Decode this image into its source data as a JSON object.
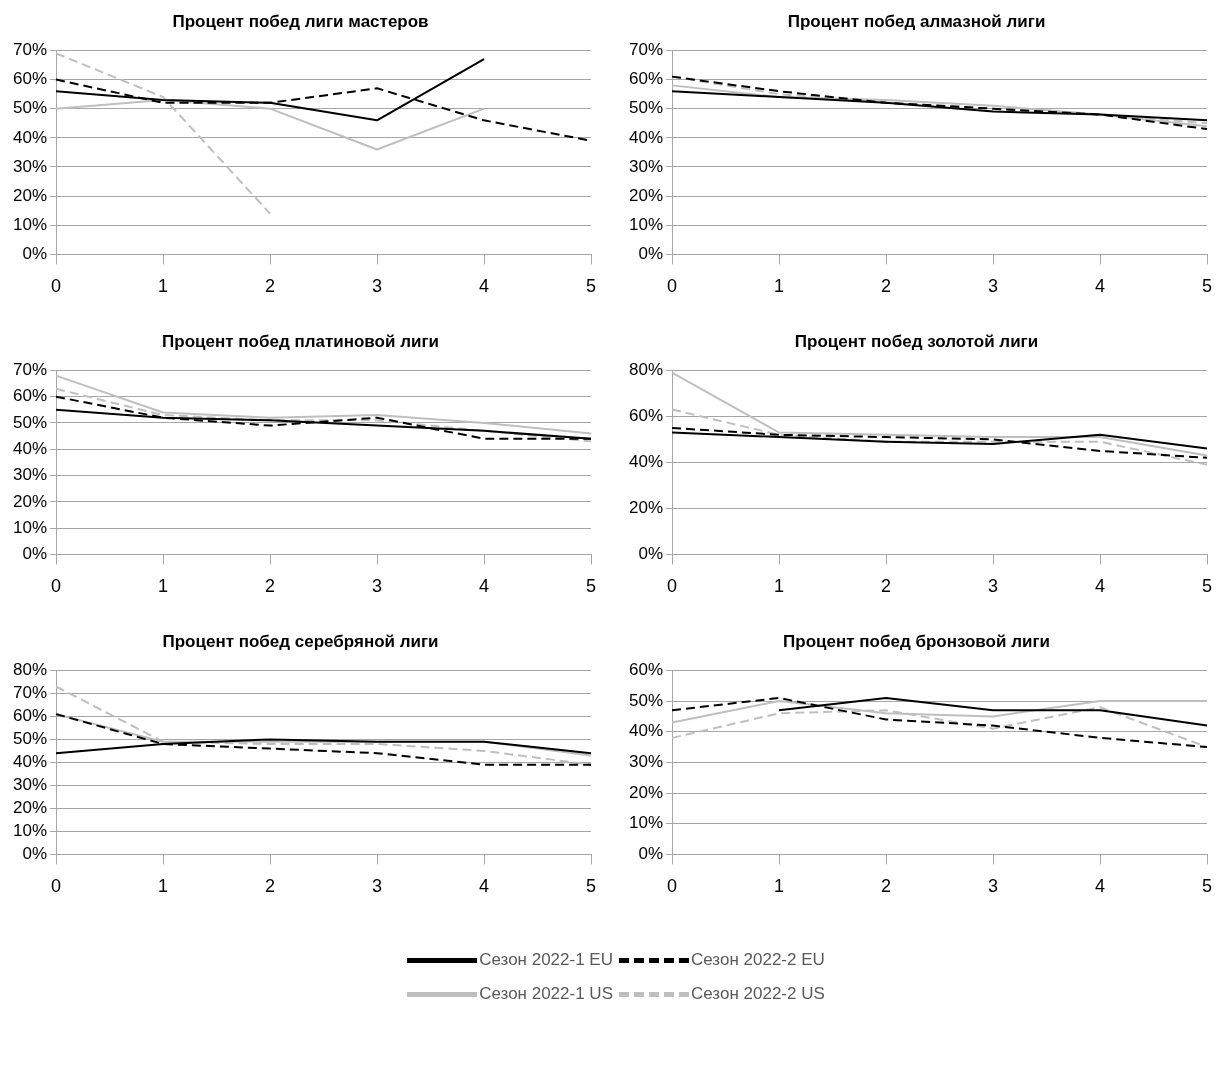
{
  "chart_data": [
    {
      "type": "line",
      "title": "Процент побед лиги мастеров",
      "categories": [
        "0",
        "1",
        "2",
        "3",
        "4",
        "5"
      ],
      "ylim": [
        0,
        70
      ],
      "yticks": [
        {
          "value": 0,
          "label": "0%"
        },
        {
          "value": 10,
          "label": "10%"
        },
        {
          "value": 20,
          "label": "20%"
        },
        {
          "value": 30,
          "label": "30%"
        },
        {
          "value": 40,
          "label": "40%"
        },
        {
          "value": 50,
          "label": "50%"
        },
        {
          "value": 60,
          "label": "60%"
        },
        {
          "value": 70,
          "label": "70%"
        }
      ],
      "grid": "y",
      "legend": "bottom",
      "marker": "none",
      "series": [
        {
          "name": "Сезон 2022-1 EU",
          "color": "#000000",
          "line_style": "solid",
          "values": [
            56,
            53,
            52,
            46,
            67,
            null
          ]
        },
        {
          "name": "Сезон 2022-2 EU",
          "color": "#000000",
          "line_style": "dashed",
          "values": [
            60,
            52,
            52,
            57,
            46,
            39
          ]
        },
        {
          "name": "Сезон 2022-1 US",
          "color": "#bfbfbf",
          "line_style": "solid",
          "values": [
            50,
            53,
            50,
            36,
            50,
            null
          ]
        },
        {
          "name": "Сезон 2022-2 US",
          "color": "#bfbfbf",
          "line_style": "dashed",
          "values": [
            69,
            54,
            14,
            null,
            null,
            null
          ]
        }
      ]
    },
    {
      "type": "line",
      "title": "Процент побед алмазной лиги",
      "categories": [
        "0",
        "1",
        "2",
        "3",
        "4",
        "5"
      ],
      "ylim": [
        0,
        70
      ],
      "yticks": [
        {
          "value": 0,
          "label": "0%"
        },
        {
          "value": 10,
          "label": "10%"
        },
        {
          "value": 20,
          "label": "20%"
        },
        {
          "value": 30,
          "label": "30%"
        },
        {
          "value": 40,
          "label": "40%"
        },
        {
          "value": 50,
          "label": "50%"
        },
        {
          "value": 60,
          "label": "60%"
        },
        {
          "value": 70,
          "label": "70%"
        }
      ],
      "grid": "y",
      "marker": "none",
      "series": [
        {
          "color": "#000000",
          "line_style": "solid",
          "values": [
            56,
            54,
            52,
            49,
            48,
            46
          ]
        },
        {
          "color": "#000000",
          "line_style": "dashed",
          "values": [
            61,
            56,
            52,
            50,
            48,
            43
          ]
        },
        {
          "color": "#bfbfbf",
          "line_style": "solid",
          "values": [
            58,
            54,
            53,
            51,
            48,
            44
          ]
        },
        {
          "color": "#bfbfbf",
          "line_style": "dashed",
          "values": [
            61,
            55,
            52,
            50,
            48,
            45
          ]
        }
      ]
    },
    {
      "type": "line",
      "title": "Процент побед платиновой лиги",
      "categories": [
        "0",
        "1",
        "2",
        "3",
        "4",
        "5"
      ],
      "ylim": [
        0,
        70
      ],
      "yticks": [
        {
          "value": 0,
          "label": "0%"
        },
        {
          "value": 10,
          "label": "10%"
        },
        {
          "value": 20,
          "label": "20%"
        },
        {
          "value": 30,
          "label": "30%"
        },
        {
          "value": 40,
          "label": "40%"
        },
        {
          "value": 50,
          "label": "50%"
        },
        {
          "value": 60,
          "label": "60%"
        },
        {
          "value": 70,
          "label": "70%"
        }
      ],
      "grid": "y",
      "marker": "none",
      "series": [
        {
          "color": "#000000",
          "line_style": "solid",
          "values": [
            55,
            52,
            51,
            49,
            47,
            44
          ]
        },
        {
          "color": "#000000",
          "line_style": "dashed",
          "values": [
            60,
            52,
            49,
            52,
            44,
            44
          ]
        },
        {
          "color": "#bfbfbf",
          "line_style": "solid",
          "values": [
            68,
            54,
            52,
            53,
            50,
            46
          ]
        },
        {
          "color": "#bfbfbf",
          "line_style": "dashed",
          "values": [
            63,
            53,
            51,
            51,
            47,
            43
          ]
        }
      ]
    },
    {
      "type": "line",
      "title": "Процент побед золотой лиги",
      "categories": [
        "0",
        "1",
        "2",
        "3",
        "4",
        "5"
      ],
      "ylim": [
        0,
        80
      ],
      "yticks": [
        {
          "value": 0,
          "label": "0%"
        },
        {
          "value": 20,
          "label": "20%"
        },
        {
          "value": 40,
          "label": "40%"
        },
        {
          "value": 60,
          "label": "60%"
        },
        {
          "value": 80,
          "label": "80%"
        }
      ],
      "grid": "y",
      "marker": "none",
      "series": [
        {
          "color": "#000000",
          "line_style": "solid",
          "values": [
            53,
            51,
            49,
            48,
            52,
            46
          ]
        },
        {
          "color": "#000000",
          "line_style": "dashed",
          "values": [
            55,
            52,
            51,
            50,
            45,
            42
          ]
        },
        {
          "color": "#bfbfbf",
          "line_style": "solid",
          "values": [
            79,
            53,
            52,
            51,
            51,
            43
          ]
        },
        {
          "color": "#bfbfbf",
          "line_style": "dashed",
          "values": [
            63,
            52,
            49,
            49,
            49,
            39
          ]
        }
      ]
    },
    {
      "type": "line",
      "title": "Процент побед серебряной лиги",
      "categories": [
        "0",
        "1",
        "2",
        "3",
        "4",
        "5"
      ],
      "ylim": [
        0,
        80
      ],
      "yticks": [
        {
          "value": 0,
          "label": "0%"
        },
        {
          "value": 10,
          "label": "10%"
        },
        {
          "value": 20,
          "label": "20%"
        },
        {
          "value": 30,
          "label": "30%"
        },
        {
          "value": 40,
          "label": "40%"
        },
        {
          "value": 50,
          "label": "50%"
        },
        {
          "value": 60,
          "label": "60%"
        },
        {
          "value": 70,
          "label": "70%"
        },
        {
          "value": 80,
          "label": "80%"
        }
      ],
      "grid": "y",
      "marker": "none",
      "series": [
        {
          "color": "#000000",
          "line_style": "solid",
          "values": [
            44,
            48,
            50,
            49,
            49,
            44
          ]
        },
        {
          "color": "#000000",
          "line_style": "dashed",
          "values": [
            61,
            48,
            46,
            44,
            39,
            39
          ]
        },
        {
          "color": "#bfbfbf",
          "line_style": "solid",
          "values": [
            61,
            49,
            49,
            49,
            49,
            43
          ]
        },
        {
          "color": "#bfbfbf",
          "line_style": "dashed",
          "values": [
            73,
            49,
            48,
            48,
            45,
            39
          ]
        }
      ]
    },
    {
      "type": "line",
      "title": "Процент побед бронзовой лиги",
      "categories": [
        "0",
        "1",
        "2",
        "3",
        "4",
        "5"
      ],
      "ylim": [
        0,
        60
      ],
      "yticks": [
        {
          "value": 0,
          "label": "0%"
        },
        {
          "value": 10,
          "label": "10%"
        },
        {
          "value": 20,
          "label": "20%"
        },
        {
          "value": 30,
          "label": "30%"
        },
        {
          "value": 40,
          "label": "40%"
        },
        {
          "value": 50,
          "label": "50%"
        },
        {
          "value": 60,
          "label": "60%"
        }
      ],
      "grid": "y",
      "marker": "none",
      "series": [
        {
          "color": "#000000",
          "line_style": "solid",
          "values": [
            null,
            47,
            51,
            47,
            47,
            42
          ]
        },
        {
          "color": "#000000",
          "line_style": "dashed",
          "values": [
            47,
            51,
            44,
            42,
            38,
            35
          ]
        },
        {
          "color": "#bfbfbf",
          "line_style": "solid",
          "values": [
            43,
            50,
            46,
            45,
            50,
            50
          ]
        },
        {
          "color": "#bfbfbf",
          "line_style": "dashed",
          "values": [
            38,
            46,
            47,
            41,
            48,
            35
          ]
        }
      ]
    }
  ]
}
